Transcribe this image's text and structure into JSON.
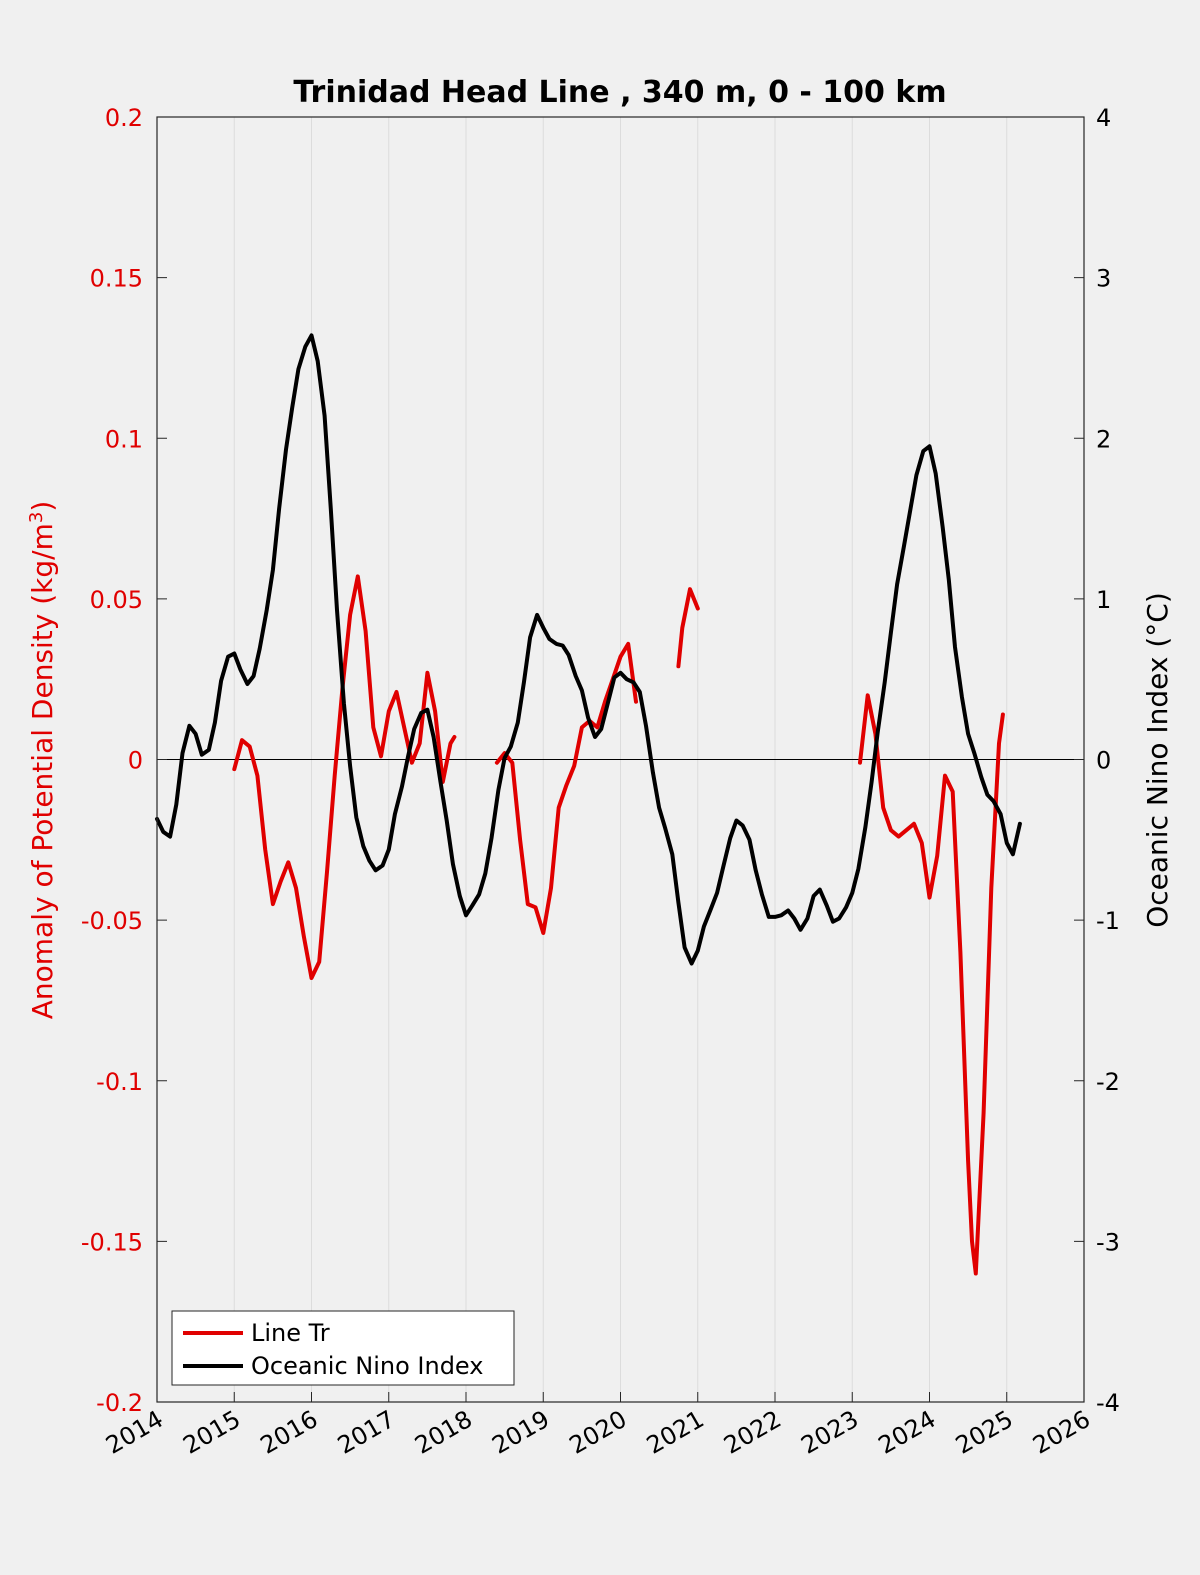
{
  "chart_data": {
    "type": "line",
    "title": "Trinidad Head Line , 340 m, 0 - 100 km",
    "xlabel": "",
    "xlim": [
      2014,
      2026
    ],
    "x_ticks": [
      "2014",
      "2015",
      "2016",
      "2017",
      "2018",
      "2019",
      "2020",
      "2021",
      "2022",
      "2023",
      "2024",
      "2025",
      "2026"
    ],
    "ylabel_left": "Anomaly of Potential Density (kg/m",
    "ylabel_left_sup": "3",
    "ylabel_left_close": ")",
    "ylim_left": [
      -0.2,
      0.2
    ],
    "y_ticks_left": [
      "0.2",
      "0.15",
      "0.1",
      "0.05",
      "0",
      "-0.05",
      "-0.1",
      "-0.15",
      "-0.2"
    ],
    "ylabel_right": "Oceanic Nino Index (°C)",
    "ylim_right": [
      -4,
      4
    ],
    "y_ticks_right": [
      "4",
      "3",
      "2",
      "1",
      "0",
      "-1",
      "-2",
      "-3",
      "-4"
    ],
    "grid": "vertical",
    "zero_line": true,
    "legend_position": "bottom-left",
    "series": [
      {
        "name": "Line Tr",
        "axis": "left",
        "color": "#e00000",
        "segments": [
          [
            [
              2015.0,
              -0.003
            ],
            [
              2015.1,
              0.006
            ],
            [
              2015.2,
              0.004
            ],
            [
              2015.3,
              -0.005
            ],
            [
              2015.4,
              -0.028
            ],
            [
              2015.5,
              -0.045
            ],
            [
              2015.6,
              -0.038
            ],
            [
              2015.7,
              -0.032
            ],
            [
              2015.8,
              -0.04
            ],
            [
              2015.9,
              -0.055
            ],
            [
              2016.0,
              -0.068
            ],
            [
              2016.1,
              -0.063
            ],
            [
              2016.2,
              -0.035
            ],
            [
              2016.3,
              -0.005
            ],
            [
              2016.4,
              0.022
            ],
            [
              2016.5,
              0.045
            ],
            [
              2016.6,
              0.057
            ],
            [
              2016.7,
              0.04
            ],
            [
              2016.8,
              0.01
            ],
            [
              2016.9,
              0.001
            ],
            [
              2017.0,
              0.015
            ],
            [
              2017.1,
              0.021
            ],
            [
              2017.2,
              0.01
            ],
            [
              2017.3,
              -0.001
            ],
            [
              2017.4,
              0.005
            ],
            [
              2017.5,
              0.027
            ],
            [
              2017.6,
              0.015
            ],
            [
              2017.7,
              -0.007
            ],
            [
              2017.8,
              0.005
            ],
            [
              2017.85,
              0.007
            ]
          ],
          [
            [
              2018.4,
              -0.001
            ],
            [
              2018.5,
              0.002
            ],
            [
              2018.6,
              -0.001
            ],
            [
              2018.7,
              -0.025
            ],
            [
              2018.8,
              -0.045
            ],
            [
              2018.9,
              -0.046
            ],
            [
              2019.0,
              -0.054
            ],
            [
              2019.1,
              -0.04
            ],
            [
              2019.2,
              -0.015
            ],
            [
              2019.3,
              -0.008
            ],
            [
              2019.4,
              -0.002
            ],
            [
              2019.5,
              0.01
            ],
            [
              2019.6,
              0.012
            ],
            [
              2019.7,
              0.01
            ],
            [
              2019.8,
              0.018
            ],
            [
              2019.9,
              0.025
            ],
            [
              2020.0,
              0.032
            ],
            [
              2020.1,
              0.036
            ],
            [
              2020.2,
              0.018
            ]
          ],
          [
            [
              2020.75,
              0.029
            ],
            [
              2020.8,
              0.041
            ],
            [
              2020.9,
              0.053
            ],
            [
              2021.0,
              0.047
            ]
          ],
          [
            [
              2023.1,
              -0.001
            ],
            [
              2023.2,
              0.02
            ],
            [
              2023.3,
              0.008
            ],
            [
              2023.4,
              -0.015
            ],
            [
              2023.5,
              -0.022
            ],
            [
              2023.6,
              -0.024
            ],
            [
              2023.7,
              -0.022
            ],
            [
              2023.8,
              -0.02
            ],
            [
              2023.9,
              -0.026
            ],
            [
              2024.0,
              -0.043
            ],
            [
              2024.1,
              -0.03
            ],
            [
              2024.2,
              -0.005
            ],
            [
              2024.3,
              -0.01
            ],
            [
              2024.4,
              -0.06
            ],
            [
              2024.5,
              -0.125
            ],
            [
              2024.55,
              -0.15
            ],
            [
              2024.6,
              -0.16
            ],
            [
              2024.7,
              -0.11
            ],
            [
              2024.8,
              -0.04
            ],
            [
              2024.9,
              0.005
            ],
            [
              2024.95,
              0.014
            ]
          ]
        ]
      },
      {
        "name": "Oceanic Nino Index",
        "axis": "right",
        "color": "#000000",
        "segments": [
          [
            [
              2014.0,
              -0.37
            ],
            [
              2014.08,
              -0.45
            ],
            [
              2014.17,
              -0.48
            ],
            [
              2014.25,
              -0.28
            ],
            [
              2014.33,
              0.04
            ],
            [
              2014.42,
              0.21
            ],
            [
              2014.5,
              0.16
            ],
            [
              2014.58,
              0.03
            ],
            [
              2014.67,
              0.06
            ],
            [
              2014.75,
              0.23
            ],
            [
              2014.83,
              0.49
            ],
            [
              2014.92,
              0.64
            ],
            [
              2015.0,
              0.66
            ],
            [
              2015.08,
              0.56
            ],
            [
              2015.17,
              0.47
            ],
            [
              2015.25,
              0.52
            ],
            [
              2015.33,
              0.69
            ],
            [
              2015.42,
              0.93
            ],
            [
              2015.5,
              1.18
            ],
            [
              2015.58,
              1.56
            ],
            [
              2015.67,
              1.93
            ],
            [
              2015.75,
              2.19
            ],
            [
              2015.83,
              2.43
            ],
            [
              2015.92,
              2.57
            ],
            [
              2016.0,
              2.64
            ],
            [
              2016.08,
              2.48
            ],
            [
              2016.17,
              2.14
            ],
            [
              2016.25,
              1.56
            ],
            [
              2016.33,
              0.93
            ],
            [
              2016.42,
              0.35
            ],
            [
              2016.5,
              -0.04
            ],
            [
              2016.58,
              -0.36
            ],
            [
              2016.67,
              -0.54
            ],
            [
              2016.75,
              -0.63
            ],
            [
              2016.83,
              -0.69
            ],
            [
              2016.92,
              -0.66
            ],
            [
              2017.0,
              -0.56
            ],
            [
              2017.08,
              -0.34
            ],
            [
              2017.17,
              -0.17
            ],
            [
              2017.25,
              0.02
            ],
            [
              2017.33,
              0.19
            ],
            [
              2017.42,
              0.29
            ],
            [
              2017.5,
              0.31
            ],
            [
              2017.58,
              0.14
            ],
            [
              2017.67,
              -0.14
            ],
            [
              2017.75,
              -0.38
            ],
            [
              2017.83,
              -0.65
            ],
            [
              2017.92,
              -0.85
            ],
            [
              2018.0,
              -0.97
            ],
            [
              2018.08,
              -0.91
            ],
            [
              2018.17,
              -0.84
            ],
            [
              2018.25,
              -0.71
            ],
            [
              2018.33,
              -0.49
            ],
            [
              2018.42,
              -0.19
            ],
            [
              2018.5,
              0.01
            ],
            [
              2018.58,
              0.08
            ],
            [
              2018.67,
              0.23
            ],
            [
              2018.75,
              0.48
            ],
            [
              2018.83,
              0.76
            ],
            [
              2018.92,
              0.9
            ],
            [
              2019.0,
              0.82
            ],
            [
              2019.08,
              0.75
            ],
            [
              2019.17,
              0.72
            ],
            [
              2019.25,
              0.71
            ],
            [
              2019.33,
              0.65
            ],
            [
              2019.42,
              0.52
            ],
            [
              2019.5,
              0.43
            ],
            [
              2019.58,
              0.26
            ],
            [
              2019.67,
              0.14
            ],
            [
              2019.75,
              0.19
            ],
            [
              2019.83,
              0.34
            ],
            [
              2019.92,
              0.51
            ],
            [
              2020.0,
              0.54
            ],
            [
              2020.08,
              0.5
            ],
            [
              2020.17,
              0.48
            ],
            [
              2020.25,
              0.42
            ],
            [
              2020.33,
              0.21
            ],
            [
              2020.42,
              -0.08
            ],
            [
              2020.5,
              -0.3
            ],
            [
              2020.58,
              -0.43
            ],
            [
              2020.67,
              -0.59
            ],
            [
              2020.75,
              -0.89
            ],
            [
              2020.83,
              -1.17
            ],
            [
              2020.92,
              -1.27
            ],
            [
              2021.0,
              -1.19
            ],
            [
              2021.08,
              -1.04
            ],
            [
              2021.17,
              -0.93
            ],
            [
              2021.25,
              -0.83
            ],
            [
              2021.33,
              -0.67
            ],
            [
              2021.42,
              -0.49
            ],
            [
              2021.5,
              -0.38
            ],
            [
              2021.58,
              -0.41
            ],
            [
              2021.67,
              -0.5
            ],
            [
              2021.75,
              -0.69
            ],
            [
              2021.83,
              -0.84
            ],
            [
              2021.92,
              -0.98
            ],
            [
              2022.0,
              -0.98
            ],
            [
              2022.08,
              -0.97
            ],
            [
              2022.17,
              -0.94
            ],
            [
              2022.25,
              -0.99
            ],
            [
              2022.33,
              -1.06
            ],
            [
              2022.42,
              -0.99
            ],
            [
              2022.5,
              -0.85
            ],
            [
              2022.58,
              -0.81
            ],
            [
              2022.67,
              -0.91
            ],
            [
              2022.75,
              -1.01
            ],
            [
              2022.83,
              -0.99
            ],
            [
              2022.92,
              -0.92
            ],
            [
              2023.0,
              -0.83
            ],
            [
              2023.08,
              -0.68
            ],
            [
              2023.17,
              -0.42
            ],
            [
              2023.25,
              -0.14
            ],
            [
              2023.33,
              0.17
            ],
            [
              2023.42,
              0.48
            ],
            [
              2023.5,
              0.79
            ],
            [
              2023.58,
              1.09
            ],
            [
              2023.67,
              1.33
            ],
            [
              2023.75,
              1.55
            ],
            [
              2023.83,
              1.77
            ],
            [
              2023.92,
              1.92
            ],
            [
              2024.0,
              1.95
            ],
            [
              2024.08,
              1.78
            ],
            [
              2024.17,
              1.45
            ],
            [
              2024.25,
              1.12
            ],
            [
              2024.33,
              0.7
            ],
            [
              2024.42,
              0.39
            ],
            [
              2024.5,
              0.16
            ],
            [
              2024.58,
              0.04
            ],
            [
              2024.67,
              -0.11
            ],
            [
              2024.75,
              -0.22
            ],
            [
              2024.83,
              -0.26
            ],
            [
              2024.92,
              -0.34
            ],
            [
              2025.0,
              -0.52
            ],
            [
              2025.08,
              -0.59
            ],
            [
              2025.17,
              -0.4
            ]
          ]
        ]
      }
    ]
  }
}
